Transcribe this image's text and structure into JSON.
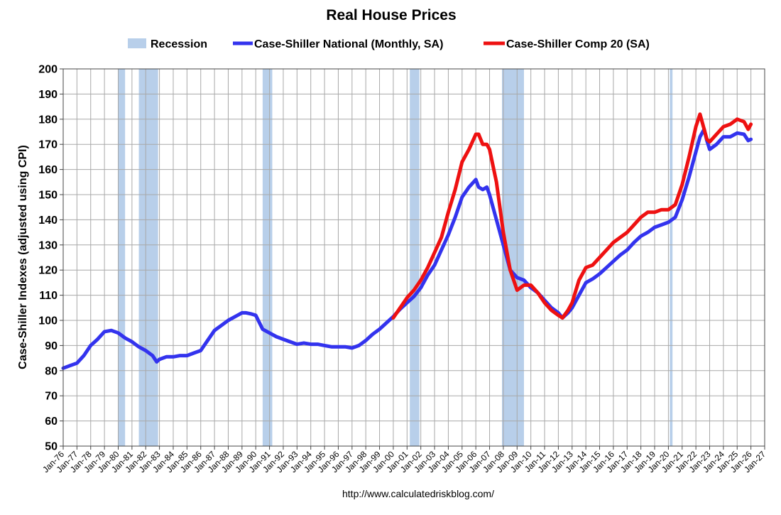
{
  "chart_data": {
    "type": "line",
    "title": "Real House Prices",
    "ylabel": "Case-Shiller Indexes (adjusted using CPI)",
    "xlabel": "",
    "source": "http://www.calculatedriskblog.com/",
    "ylim": [
      50,
      200
    ],
    "yticks": [
      50,
      60,
      70,
      80,
      90,
      100,
      110,
      120,
      130,
      140,
      150,
      160,
      170,
      180,
      190,
      200
    ],
    "xlim": [
      1976,
      2027
    ],
    "xtick_labels": [
      "Jan-76",
      "Jan-77",
      "Jan-78",
      "Jan-79",
      "Jan-80",
      "Jan-81",
      "Jan-82",
      "Jan-83",
      "Jan-84",
      "Jan-85",
      "Jan-86",
      "Jan-87",
      "Jan-88",
      "Jan-89",
      "Jan-90",
      "Jan-91",
      "Jan-92",
      "Jan-93",
      "Jan-94",
      "Jan-95",
      "Jan-96",
      "Jan-97",
      "Jan-98",
      "Jan-99",
      "Jan-00",
      "Jan-01",
      "Jan-02",
      "Jan-03",
      "Jan-04",
      "Jan-05",
      "Jan-06",
      "Jan-07",
      "Jan-08",
      "Jan-09",
      "Jan-10",
      "Jan-11",
      "Jan-12",
      "Jan-13",
      "Jan-14",
      "Jan-15",
      "Jan-16",
      "Jan-17",
      "Jan-18",
      "Jan-19",
      "Jan-20",
      "Jan-21",
      "Jan-22",
      "Jan-23",
      "Jan-24",
      "Jan-25",
      "Jan-26",
      "Jan-27"
    ],
    "grid": true,
    "legend": [
      {
        "label": "Recession",
        "kind": "band",
        "color": "#b8cfea"
      },
      {
        "label": "Case-Shiller National (Monthly, SA)",
        "kind": "line",
        "color": "#3333ee"
      },
      {
        "label": "Case-Shiller Comp 20  (SA)",
        "kind": "line",
        "color": "#ee1111"
      }
    ],
    "recessions": [
      {
        "start": 1980.0,
        "end": 1980.5
      },
      {
        "start": 1981.5,
        "end": 1982.9
      },
      {
        "start": 1990.5,
        "end": 1991.2
      },
      {
        "start": 2001.2,
        "end": 2001.9
      },
      {
        "start": 2007.9,
        "end": 2009.5
      },
      {
        "start": 2020.1,
        "end": 2020.3
      }
    ],
    "series": [
      {
        "name": "Case-Shiller National (Monthly, SA)",
        "color": "#3333ee",
        "x": [
          1976,
          1976.5,
          1977,
          1977.5,
          1978,
          1978.5,
          1979,
          1979.5,
          1980,
          1980.5,
          1981,
          1981.5,
          1982,
          1982.5,
          1982.8,
          1983,
          1983.5,
          1984,
          1984.5,
          1985,
          1985.5,
          1986,
          1986.5,
          1987,
          1987.5,
          1988,
          1988.5,
          1989,
          1989.3,
          1989.7,
          1990,
          1990.5,
          1991,
          1991.5,
          1992,
          1992.5,
          1993,
          1993.5,
          1994,
          1994.5,
          1995,
          1995.5,
          1996,
          1996.5,
          1997,
          1997.5,
          1998,
          1998.5,
          1999,
          1999.5,
          2000,
          2000.5,
          2001,
          2001.5,
          2002,
          2002.5,
          2003,
          2003.5,
          2004,
          2004.5,
          2005,
          2005.5,
          2006,
          2006.2,
          2006.5,
          2006.8,
          2007,
          2007.5,
          2008,
          2008.5,
          2009,
          2009.5,
          2010,
          2010.5,
          2011,
          2011.5,
          2012,
          2012.3,
          2012.7,
          2013,
          2013.5,
          2014,
          2014.5,
          2015,
          2015.5,
          2016,
          2016.5,
          2017,
          2017.5,
          2018,
          2018.5,
          2019,
          2019.5,
          2020,
          2020.5,
          2021,
          2021.5,
          2022,
          2022.3,
          2022.6,
          2022.8,
          2023,
          2023.5,
          2024,
          2024.5,
          2025,
          2025.5,
          2025.8,
          2026
        ],
        "values": [
          81,
          82,
          83,
          86,
          90,
          92.5,
          95.5,
          96,
          95,
          93,
          91.5,
          89.5,
          88,
          86,
          83.5,
          84.5,
          85.5,
          85.5,
          86,
          86,
          87,
          88,
          92,
          96,
          98,
          100,
          101.5,
          103,
          103,
          102.5,
          102,
          96.5,
          95,
          93.5,
          92.5,
          91.5,
          90.5,
          91,
          90.5,
          90.5,
          90,
          89.5,
          89.5,
          89.5,
          89,
          90,
          92,
          94.5,
          96.5,
          99,
          101.5,
          104.5,
          107,
          109.5,
          113,
          118,
          122,
          128,
          134,
          141,
          149,
          153,
          156,
          153,
          152,
          153,
          150,
          140,
          130,
          120,
          117,
          116,
          113,
          111,
          108,
          105,
          103,
          101,
          103,
          105,
          110,
          115,
          116.5,
          118.5,
          121,
          123.5,
          126,
          128,
          131,
          133.5,
          135,
          137,
          138,
          139,
          141,
          148,
          157,
          167,
          173,
          176,
          171.5,
          168,
          170,
          173,
          173,
          174.5,
          174,
          171.5,
          172
        ]
      },
      {
        "name": "Case-Shiller Comp 20  (SA)",
        "color": "#ee1111",
        "x": [
          2000,
          2000.5,
          2001,
          2001.5,
          2002,
          2002.5,
          2003,
          2003.5,
          2004,
          2004.5,
          2005,
          2005.5,
          2006,
          2006.2,
          2006.5,
          2006.8,
          2007,
          2007.5,
          2008,
          2008.5,
          2009,
          2009.5,
          2010,
          2010.5,
          2011,
          2011.5,
          2012,
          2012.3,
          2012.7,
          2013,
          2013.5,
          2014,
          2014.5,
          2015,
          2015.5,
          2016,
          2016.5,
          2017,
          2017.5,
          2018,
          2018.5,
          2019,
          2019.5,
          2020,
          2020.5,
          2021,
          2021.5,
          2022,
          2022.3,
          2022.6,
          2022.8,
          2023,
          2023.5,
          2024,
          2024.5,
          2025,
          2025.5,
          2025.8,
          2026
        ],
        "values": [
          101,
          105,
          109,
          112,
          116,
          121,
          127,
          133,
          143,
          152,
          163,
          168,
          174,
          174,
          170,
          170,
          168,
          155,
          135,
          120,
          112,
          114,
          114,
          111,
          107,
          104,
          102,
          101,
          104,
          107,
          116,
          121,
          122,
          125,
          128,
          131,
          133,
          135,
          138,
          141,
          143,
          143,
          144,
          144,
          146,
          154,
          165,
          177,
          182,
          176,
          172,
          171,
          174,
          177,
          178,
          180,
          179,
          176,
          178
        ]
      }
    ]
  }
}
